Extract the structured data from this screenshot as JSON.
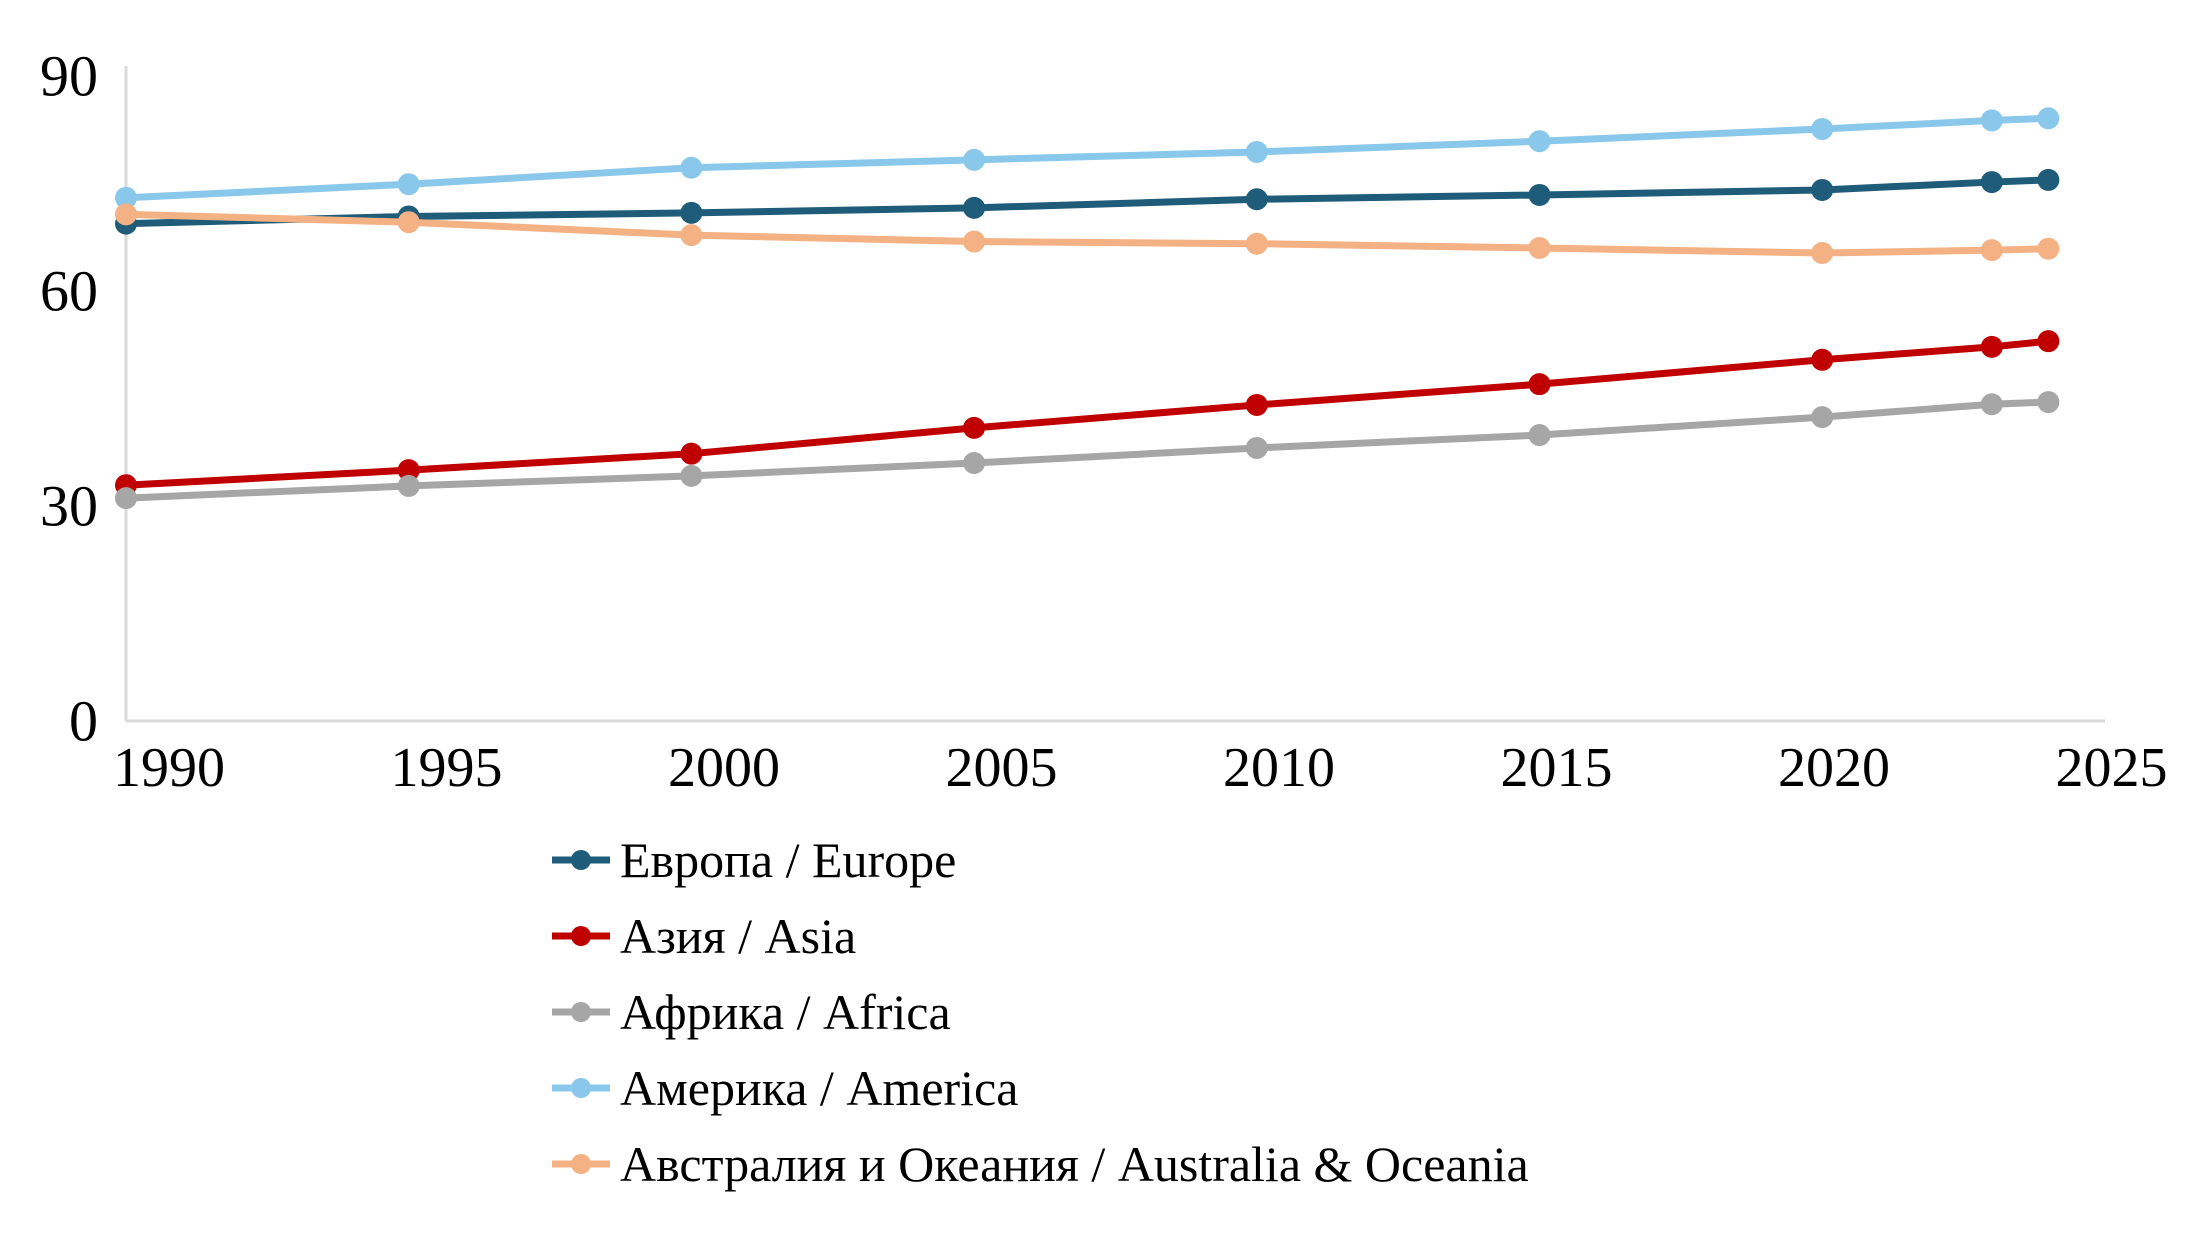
{
  "chart_data": {
    "type": "line",
    "title": "",
    "xlabel": "",
    "ylabel": "",
    "x": [
      1990,
      1995,
      2000,
      2005,
      2010,
      2015,
      2020,
      2023,
      2024
    ],
    "xticks": [
      1990,
      1995,
      2000,
      2005,
      2010,
      2015,
      2020,
      2025
    ],
    "yticks": [
      0,
      30,
      60,
      90
    ],
    "ylim": [
      0,
      90
    ],
    "xlim": [
      1990,
      2025
    ],
    "grid": false,
    "markers": true,
    "legend_position": "bottom-left",
    "axis_color": "#D9D9D9",
    "text_color": "#000000",
    "background_color": "#FFFFFF",
    "series": [
      {
        "name": "Европа / Europe",
        "color": "#1E5C7A",
        "values": [
          69.4,
          70.4,
          70.9,
          71.6,
          72.8,
          73.4,
          74.1,
          75.2,
          75.5
        ]
      },
      {
        "name": "Азия / Asia",
        "color": "#C00000",
        "values": [
          32.9,
          35.0,
          37.3,
          40.9,
          44.1,
          47.0,
          50.4,
          52.2,
          53.0
        ]
      },
      {
        "name": "Африка / Africa",
        "color": "#A6A6A6",
        "values": [
          31.1,
          32.8,
          34.2,
          36.0,
          38.1,
          39.9,
          42.4,
          44.2,
          44.5
        ]
      },
      {
        "name": "Америка / America",
        "color": "#89C8EA",
        "values": [
          73.0,
          74.9,
          77.2,
          78.3,
          79.4,
          80.9,
          82.6,
          83.8,
          84.1
        ]
      },
      {
        "name": "Австралия и Океания / Australia & Oceania",
        "color": "#F4B183",
        "values": [
          70.7,
          69.6,
          67.8,
          66.9,
          66.6,
          66.0,
          65.3,
          65.7,
          65.9
        ]
      }
    ]
  }
}
